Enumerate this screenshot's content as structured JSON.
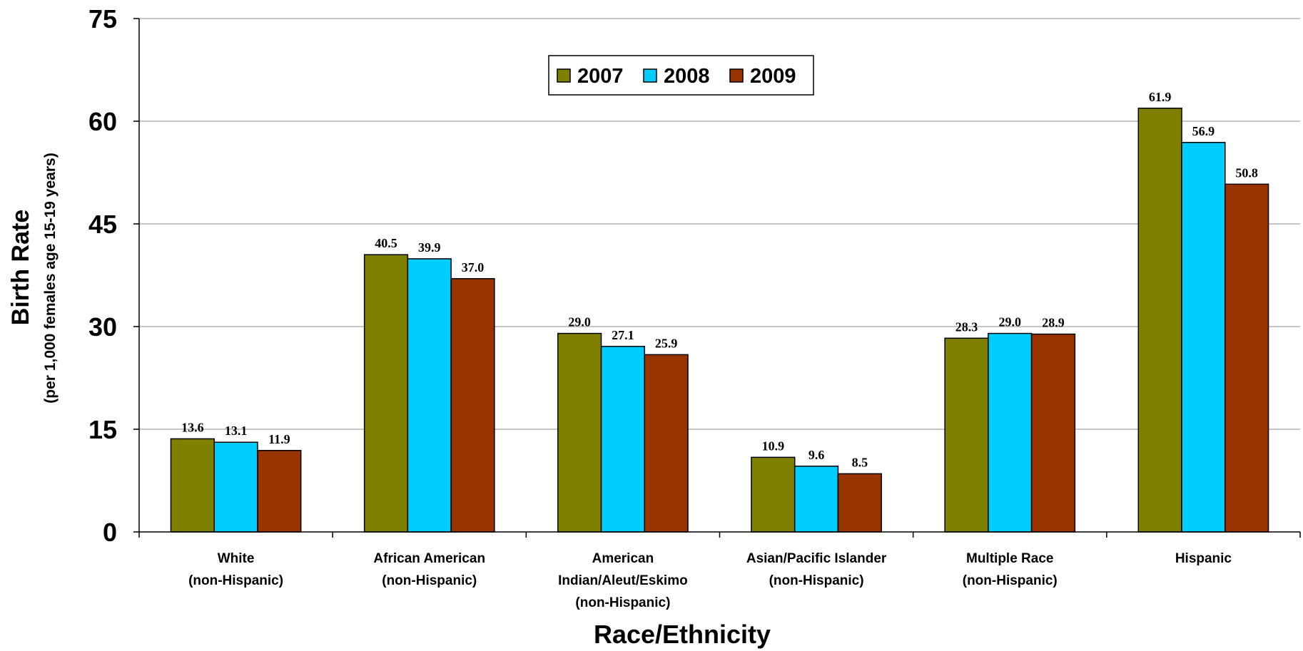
{
  "chart_data": {
    "type": "bar",
    "categories": [
      [
        "White",
        "(non-Hispanic)"
      ],
      [
        "African American",
        "(non-Hispanic)"
      ],
      [
        "American",
        "Indian/Aleut/Eskimo",
        "(non-Hispanic)"
      ],
      [
        "Asian/Pacific Islander",
        "(non-Hispanic)"
      ],
      [
        "Multiple Race",
        "(non-Hispanic)"
      ],
      [
        "Hispanic"
      ]
    ],
    "series": [
      {
        "name": "2007",
        "color": "#808000",
        "values": [
          13.6,
          40.5,
          29.0,
          10.9,
          28.3,
          61.9
        ]
      },
      {
        "name": "2008",
        "color": "#00CCFF",
        "values": [
          13.1,
          39.9,
          27.1,
          9.6,
          29.0,
          56.9
        ]
      },
      {
        "name": "2009",
        "color": "#993300",
        "values": [
          11.9,
          37.0,
          25.9,
          8.5,
          28.9,
          50.8
        ]
      }
    ],
    "ylabel": "Birth Rate",
    "ylabel_sub": "(per 1,000 females age 15-19 years)",
    "xlabel": "Race/Ethnicity",
    "ylim": [
      0,
      75
    ],
    "yticks": [
      0,
      15,
      30,
      45,
      60,
      75
    ],
    "grid": true,
    "legend_position": "top-center",
    "data_label_decimals": 1
  }
}
